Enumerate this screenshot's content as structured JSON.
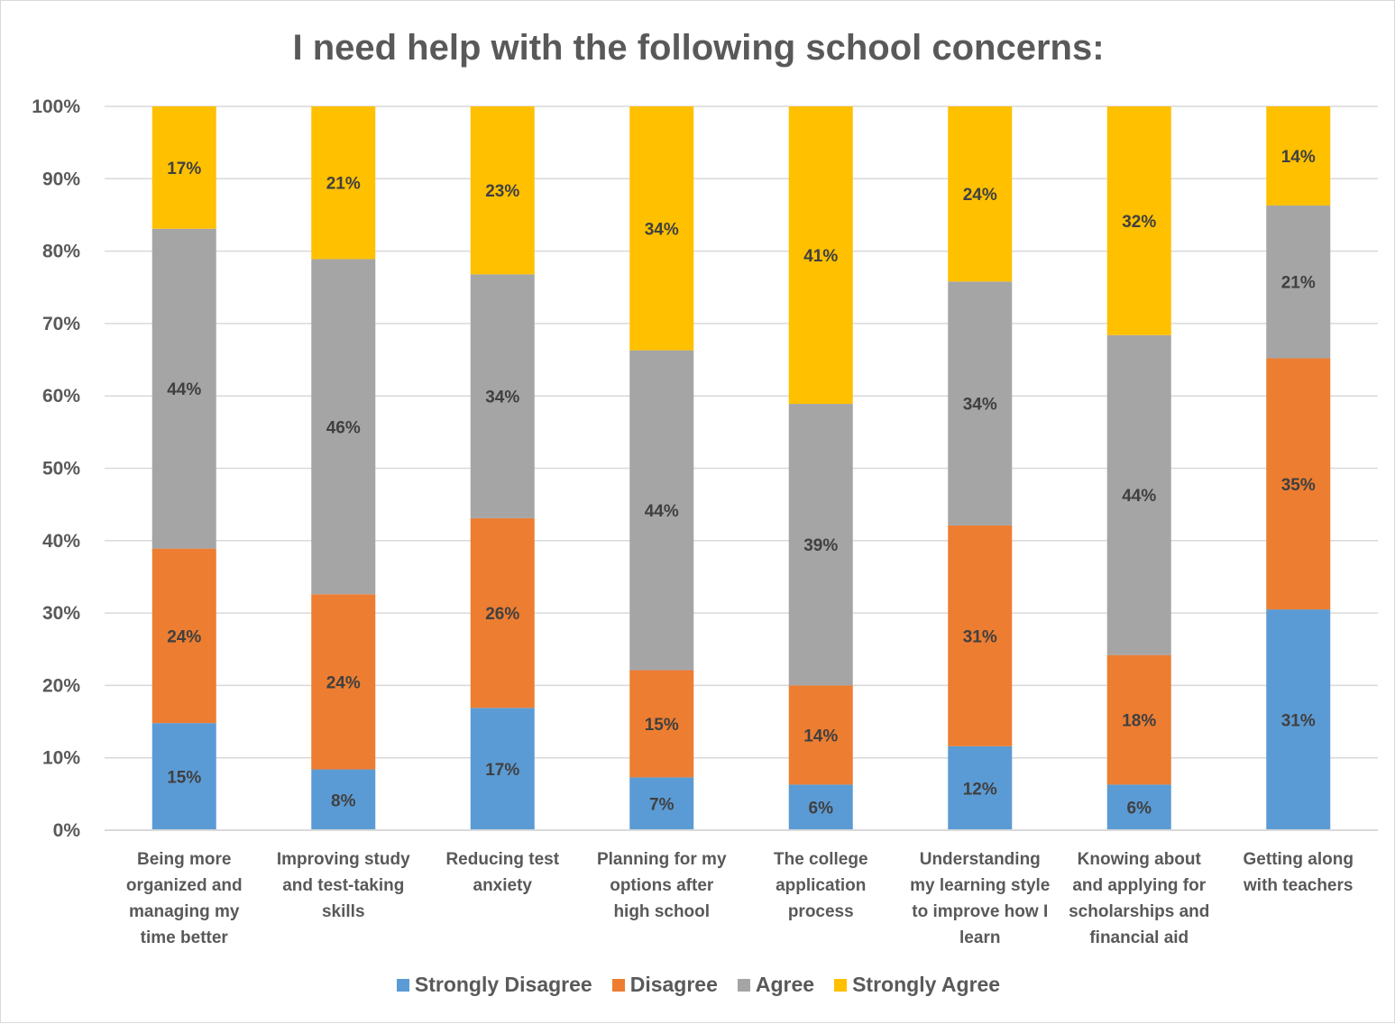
{
  "chart_data": {
    "type": "bar",
    "stacked": true,
    "percent_stacked": true,
    "title": "I need help with the following school concerns:",
    "categories": [
      "Being more organized and managing my time better",
      "Improving study and test-taking skills",
      "Reducing test anxiety",
      "Planning for my options after high school",
      "The college application process",
      "Understanding my learning style to improve how I learn",
      "Knowing about and applying for scholarships and financial aid",
      "Getting along with teachers"
    ],
    "category_lines": [
      [
        "Being more",
        "organized and",
        "managing my",
        "time better"
      ],
      [
        "Improving study",
        "and test-taking",
        "skills"
      ],
      [
        "Reducing test",
        "anxiety"
      ],
      [
        "Planning for my",
        "options after",
        "high school"
      ],
      [
        "The college",
        "application",
        "process"
      ],
      [
        "Understanding",
        "my learning style",
        "to improve how I",
        "learn"
      ],
      [
        "Knowing about",
        "and applying for",
        "scholarships and",
        "financial aid"
      ],
      [
        "Getting along",
        "with teachers"
      ]
    ],
    "series": [
      {
        "name": "Strongly Disagree",
        "color": "#5b9bd5",
        "values": [
          14.8,
          8.4,
          16.9,
          7.3,
          6.3,
          11.6,
          6.3,
          30.5
        ]
      },
      {
        "name": "Disagree",
        "color": "#ed7d31",
        "values": [
          24.1,
          24.2,
          26.2,
          14.8,
          13.7,
          30.5,
          17.9,
          34.7
        ]
      },
      {
        "name": "Agree",
        "color": "#a5a5a5",
        "values": [
          44.2,
          46.3,
          33.7,
          44.2,
          38.9,
          33.7,
          44.2,
          21.1
        ]
      },
      {
        "name": "Strongly Agree",
        "color": "#ffc000",
        "values": [
          16.9,
          21.1,
          23.2,
          33.7,
          41.1,
          24.2,
          31.6,
          13.7
        ]
      }
    ],
    "data_labels": [
      [
        "15%",
        "8%",
        "17%",
        "7%",
        "6%",
        "12%",
        "6%",
        "31%"
      ],
      [
        "24%",
        "24%",
        "26%",
        "15%",
        "14%",
        "31%",
        "18%",
        "35%"
      ],
      [
        "44%",
        "46%",
        "34%",
        "44%",
        "39%",
        "34%",
        "44%",
        "21%"
      ],
      [
        "17%",
        "21%",
        "23%",
        "34%",
        "41%",
        "24%",
        "32%",
        "14%"
      ]
    ],
    "y_ticks": [
      "0%",
      "10%",
      "20%",
      "30%",
      "40%",
      "50%",
      "60%",
      "70%",
      "80%",
      "90%",
      "100%"
    ],
    "ylim": [
      0,
      100
    ],
    "grid": true,
    "legend_position": "bottom"
  }
}
